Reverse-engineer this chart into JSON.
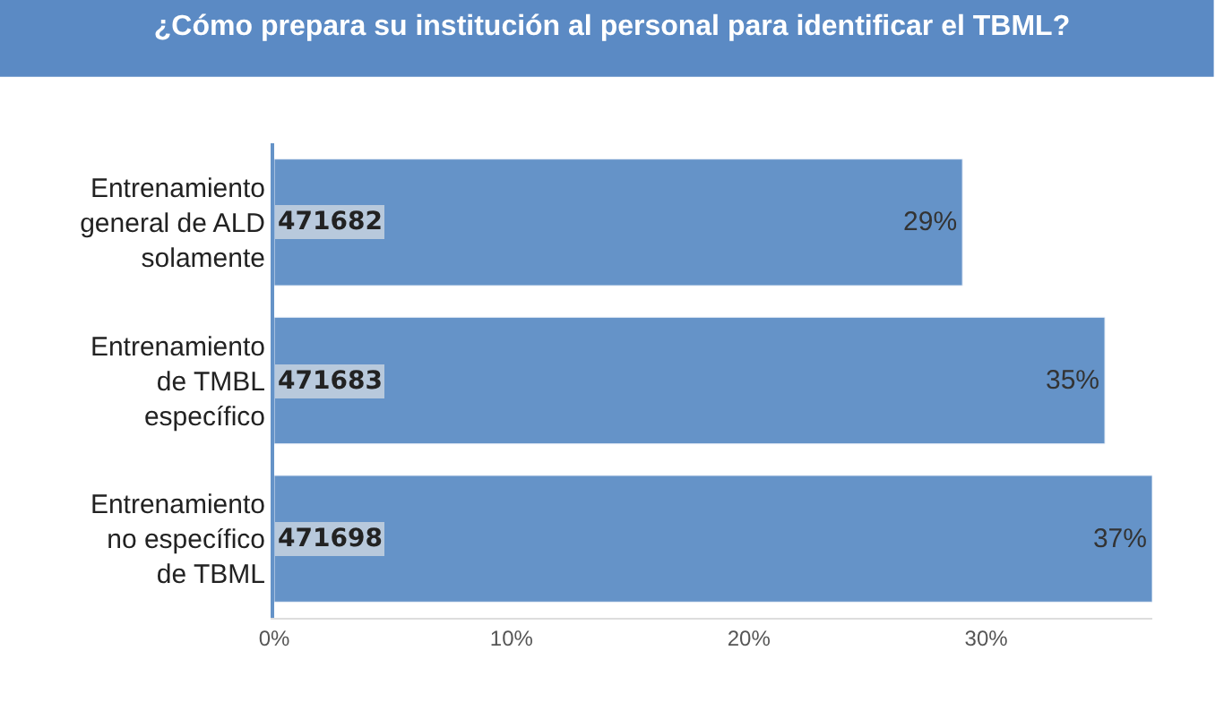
{
  "chart_data": {
    "type": "bar",
    "orientation": "horizontal",
    "title": "¿Cómo prepara su institución al personal para identificar el TBML?",
    "categories": [
      "Entrenamiento general de ALD solamente",
      "Entrenamiento de TMBL específico",
      "Entrenamiento no específico de TBML"
    ],
    "values": [
      29,
      35,
      37
    ],
    "value_labels": [
      "29%",
      "35%",
      "37%"
    ],
    "color": "#6593c8",
    "xlim": [
      0,
      37
    ],
    "xticks": [
      {
        "value": 0,
        "label": "0%"
      },
      {
        "value": 10,
        "label": "10%"
      },
      {
        "value": 20,
        "label": "20%"
      },
      {
        "value": 30,
        "label": "30%"
      }
    ],
    "annotations": [
      "471682",
      "471683",
      "471698"
    ]
  }
}
